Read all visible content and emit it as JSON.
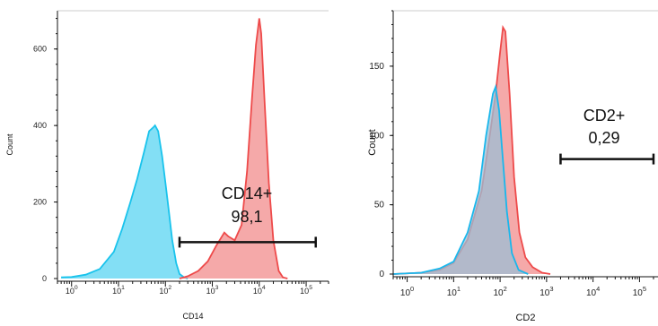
{
  "chart_data": [
    {
      "type": "area",
      "xlabel": "CD14",
      "ylabel": "Count",
      "x_scale": "log",
      "xlim": [
        0.5,
        300000
      ],
      "ylim": [
        0,
        700
      ],
      "x_ticks": [
        {
          "label": "10",
          "exp": "0",
          "value": 1
        },
        {
          "label": "10",
          "exp": "1",
          "value": 10
        },
        {
          "label": "10",
          "exp": "2",
          "value": 100
        },
        {
          "label": "10",
          "exp": "3",
          "value": 1000
        },
        {
          "label": "10",
          "exp": "4",
          "value": 10000
        },
        {
          "label": "10",
          "exp": "5",
          "value": 100000
        }
      ],
      "y_ticks": [
        "0",
        "200",
        "400",
        "600"
      ],
      "y_tick_values": [
        0,
        200,
        400,
        600
      ],
      "series": [
        {
          "color": "#59d4f2",
          "stroke": "#19c3ec",
          "points": [
            [
              0.6,
              3
            ],
            [
              1,
              4
            ],
            [
              2,
              10
            ],
            [
              4,
              25
            ],
            [
              8,
              70
            ],
            [
              12,
              130
            ],
            [
              18,
              200
            ],
            [
              25,
              260
            ],
            [
              35,
              330
            ],
            [
              45,
              385
            ],
            [
              55,
              395
            ],
            [
              60,
              400
            ],
            [
              70,
              385
            ],
            [
              85,
              320
            ],
            [
              100,
              250
            ],
            [
              120,
              170
            ],
            [
              140,
              100
            ],
            [
              170,
              40
            ],
            [
              200,
              12
            ],
            [
              250,
              3
            ],
            [
              300,
              0
            ]
          ]
        },
        {
          "color": "#f28c8c",
          "stroke": "#ee4a4a",
          "points": [
            [
              200,
              0
            ],
            [
              300,
              6
            ],
            [
              500,
              20
            ],
            [
              800,
              45
            ],
            [
              1200,
              85
            ],
            [
              1800,
              120
            ],
            [
              2200,
              110
            ],
            [
              3000,
              100
            ],
            [
              4200,
              140
            ],
            [
              5500,
              280
            ],
            [
              7000,
              470
            ],
            [
              8500,
              610
            ],
            [
              10000,
              680
            ],
            [
              11000,
              640
            ],
            [
              13000,
              460
            ],
            [
              16000,
              250
            ],
            [
              20000,
              100
            ],
            [
              26000,
              20
            ],
            [
              32000,
              3
            ],
            [
              40000,
              0
            ]
          ]
        }
      ],
      "gate": {
        "label": "CD14+",
        "value": "98,1",
        "x_from": 200,
        "x_to": 160000,
        "y": 95
      }
    },
    {
      "type": "area",
      "xlabel": "CD2",
      "ylabel": "Count",
      "x_scale": "log",
      "xlim": [
        0.5,
        250000
      ],
      "ylim": [
        0,
        190
      ],
      "x_ticks": [
        {
          "label": "10",
          "exp": "0",
          "value": 1
        },
        {
          "label": "10",
          "exp": "1",
          "value": 10
        },
        {
          "label": "10",
          "exp": "2",
          "value": 100
        },
        {
          "label": "10",
          "exp": "3",
          "value": 1000
        },
        {
          "label": "10",
          "exp": "4",
          "value": 10000
        },
        {
          "label": "10",
          "exp": "5",
          "value": 100000
        }
      ],
      "y_ticks": [
        "0",
        "50",
        "100",
        "150"
      ],
      "y_tick_values": [
        0,
        50,
        100,
        150
      ],
      "series": [
        {
          "color": "#f28c8c",
          "stroke": "#ee4a4a",
          "points": [
            [
              0.5,
              0
            ],
            [
              2,
              1
            ],
            [
              5,
              3
            ],
            [
              10,
              8
            ],
            [
              20,
              25
            ],
            [
              40,
              60
            ],
            [
              60,
              100
            ],
            [
              80,
              130
            ],
            [
              100,
              160
            ],
            [
              115,
              178
            ],
            [
              130,
              175
            ],
            [
              160,
              130
            ],
            [
              200,
              70
            ],
            [
              260,
              30
            ],
            [
              350,
              12
            ],
            [
              500,
              5
            ],
            [
              800,
              1
            ],
            [
              1200,
              0
            ]
          ]
        },
        {
          "color": "#9bbfd6",
          "stroke": "#19b7ec",
          "points": [
            [
              0.5,
              0
            ],
            [
              2,
              1
            ],
            [
              5,
              4
            ],
            [
              10,
              9
            ],
            [
              20,
              30
            ],
            [
              35,
              60
            ],
            [
              50,
              100
            ],
            [
              70,
              130
            ],
            [
              80,
              135
            ],
            [
              95,
              118
            ],
            [
              110,
              90
            ],
            [
              140,
              45
            ],
            [
              180,
              15
            ],
            [
              250,
              3
            ],
            [
              400,
              0
            ]
          ]
        }
      ],
      "gate": {
        "label": "CD2+",
        "value": "0,29",
        "x_from": 2000,
        "x_to": 200000,
        "y": 83
      }
    }
  ]
}
